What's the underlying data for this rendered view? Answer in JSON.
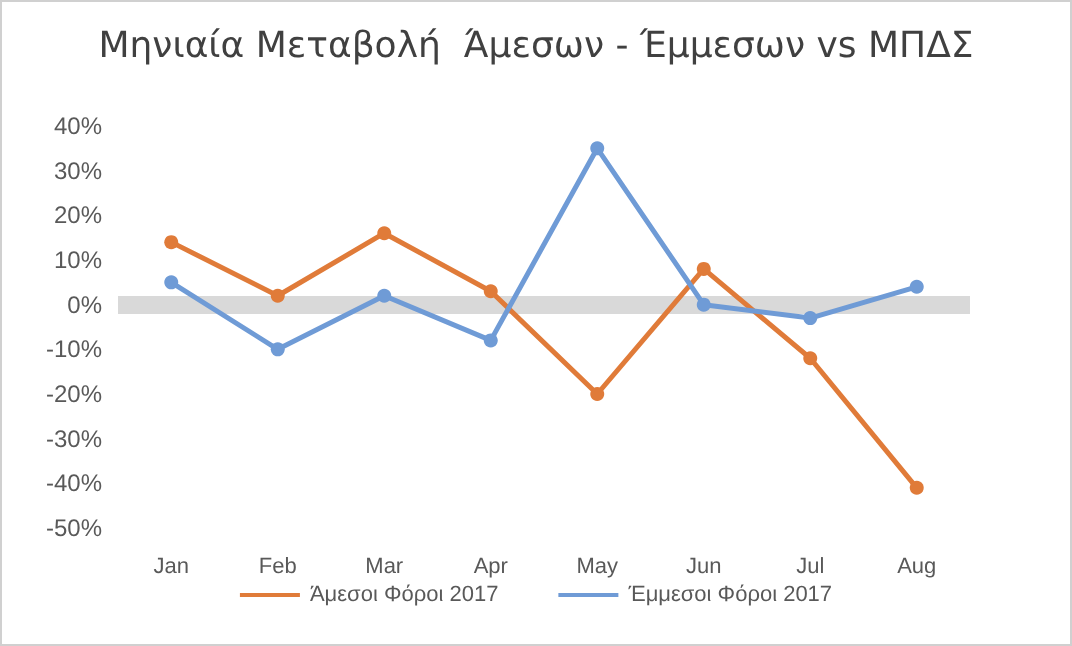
{
  "chart_data": {
    "type": "line",
    "title": "Μηνιαία Μεταβολή  Άμεσων - Έμμεσων vs ΜΠΔΣ",
    "categories": [
      "Jan",
      "Feb",
      "Mar",
      "Apr",
      "May",
      "Jun",
      "Jul",
      "Aug"
    ],
    "series": [
      {
        "name": "Άμεσοι Φόροι 2017",
        "color": "#e07b39",
        "values": [
          14,
          2,
          16,
          3,
          -20,
          8,
          -12,
          -41
        ]
      },
      {
        "name": "Έμμεσοι Φόροι 2017",
        "color": "#6f9bd6",
        "values": [
          5,
          -10,
          2,
          -8,
          35,
          0,
          -3,
          4
        ]
      }
    ],
    "ylim": [
      -50,
      40
    ],
    "yticks": [
      {
        "value": -50,
        "label": "-50%"
      },
      {
        "value": -40,
        "label": "-40%"
      },
      {
        "value": -30,
        "label": "-30%"
      },
      {
        "value": -20,
        "label": "-20%"
      },
      {
        "value": -10,
        "label": "-10%"
      },
      {
        "value": 0,
        "label": "0%"
      },
      {
        "value": 10,
        "label": "10%"
      },
      {
        "value": 20,
        "label": "20%"
      },
      {
        "value": 30,
        "label": "30%"
      },
      {
        "value": 40,
        "label": "40%"
      }
    ],
    "ref_lines": [
      {
        "axis": "y",
        "value": 0,
        "color": "#d9d9d9"
      }
    ],
    "grid": false,
    "legend": "bottom",
    "marker": "circle",
    "line_style": "solid"
  }
}
